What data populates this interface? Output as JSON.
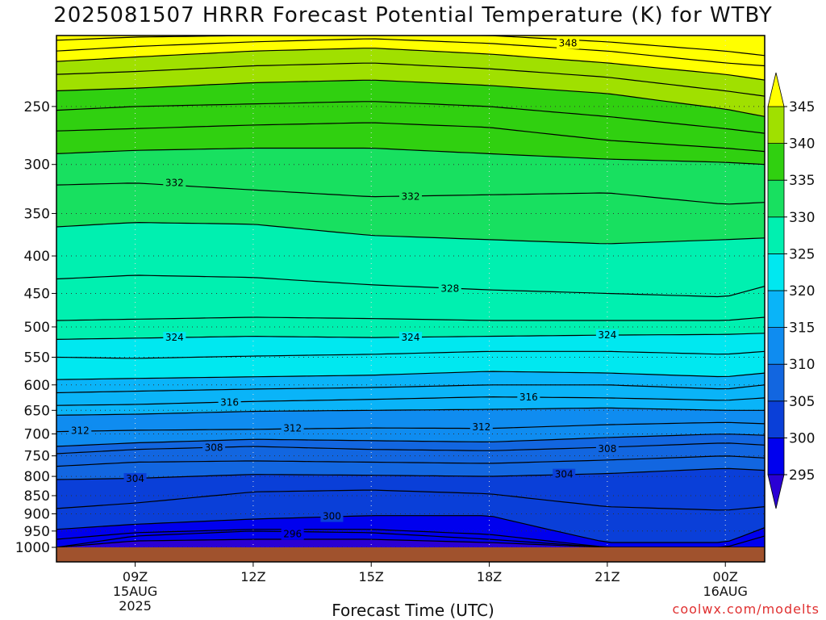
{
  "chart_data": {
    "type": "heatmap",
    "title": "2025081507 HRRR Forecast Potential Temperature (K) for WTBY",
    "xlabel": "Forecast Time (UTC)",
    "ylabel": "",
    "y_axis": {
      "scale": "log",
      "inverted": true,
      "range": [
        200,
        1000
      ],
      "ticks": [
        250,
        300,
        350,
        400,
        450,
        500,
        550,
        600,
        650,
        700,
        750,
        800,
        850,
        900,
        950,
        1000
      ]
    },
    "x_axis": {
      "range_hours_utc": [
        7,
        25
      ],
      "ticks": [
        {
          "x": 9,
          "label": "09Z",
          "sub": [
            "15AUG",
            "2025"
          ]
        },
        {
          "x": 12,
          "label": "12Z",
          "sub": []
        },
        {
          "x": 15,
          "label": "15Z",
          "sub": []
        },
        {
          "x": 18,
          "label": "18Z",
          "sub": []
        },
        {
          "x": 21,
          "label": "21Z",
          "sub": []
        },
        {
          "x": 24,
          "label": "00Z",
          "sub": [
            "16AUG"
          ]
        }
      ]
    },
    "grid": true,
    "colorbar": {
      "levels": [
        295,
        300,
        305,
        310,
        315,
        320,
        325,
        330,
        335,
        340,
        345
      ],
      "labels": [
        "295",
        "300",
        "305",
        "310",
        "315",
        "320",
        "325",
        "330",
        "335",
        "340",
        "345"
      ],
      "colors": [
        "#2a00d4",
        "#0000ee",
        "#0a3fd8",
        "#1266e0",
        "#0f8cf0",
        "#0ab4f8",
        "#00e8f0",
        "#00f0b0",
        "#18e060",
        "#30d010",
        "#a0e000",
        "#ffff00"
      ],
      "extend": "both"
    },
    "times": [
      7,
      9,
      12,
      15,
      18,
      21,
      24,
      25
    ],
    "isotherm_profiles": [
      {
        "theta": 294,
        "p": [
          1000,
          980,
          975,
          975,
          985,
          1000,
          1000,
          1000
        ]
      },
      {
        "theta": 296,
        "p": [
          1000,
          965,
          950,
          955,
          975,
          1000,
          1000,
          1000
        ]
      },
      {
        "theta": 298,
        "p": [
          975,
          955,
          945,
          945,
          960,
          1000,
          1000,
          965
        ]
      },
      {
        "theta": 300,
        "p": [
          945,
          930,
          915,
          905,
          905,
          985,
          985,
          940
        ]
      },
      {
        "theta": 302,
        "p": [
          885,
          870,
          840,
          835,
          845,
          880,
          890,
          880
        ]
      },
      {
        "theta": 304,
        "p": [
          808,
          805,
          795,
          797,
          800,
          793,
          780,
          785
        ]
      },
      {
        "theta": 306,
        "p": [
          775,
          765,
          762,
          765,
          768,
          760,
          750,
          755
        ]
      },
      {
        "theta": 308,
        "p": [
          745,
          735,
          728,
          735,
          738,
          730,
          720,
          725
        ]
      },
      {
        "theta": 310,
        "p": [
          728,
          720,
          712,
          715,
          718,
          708,
          700,
          703
        ]
      },
      {
        "theta": 312,
        "p": [
          695,
          692,
          690,
          687,
          688,
          680,
          675,
          678
        ]
      },
      {
        "theta": 314,
        "p": [
          660,
          658,
          652,
          650,
          648,
          645,
          650,
          650
        ]
      },
      {
        "theta": 316,
        "p": [
          640,
          638,
          632,
          628,
          623,
          625,
          630,
          625
        ]
      },
      {
        "theta": 318,
        "p": [
          615,
          612,
          608,
          605,
          600,
          600,
          608,
          600
        ]
      },
      {
        "theta": 320,
        "p": [
          590,
          588,
          585,
          582,
          575,
          578,
          585,
          578
        ]
      },
      {
        "theta": 322,
        "p": [
          550,
          552,
          548,
          545,
          540,
          540,
          545,
          540
        ]
      },
      {
        "theta": 324,
        "p": [
          520,
          518,
          515,
          517,
          515,
          513,
          512,
          510
        ]
      },
      {
        "theta": 326,
        "p": [
          490,
          488,
          485,
          487,
          490,
          490,
          490,
          485
        ]
      },
      {
        "theta": 328,
        "p": [
          430,
          425,
          428,
          438,
          445,
          450,
          455,
          440
        ]
      },
      {
        "theta": 330,
        "p": [
          365,
          360,
          362,
          375,
          380,
          385,
          380,
          378
        ]
      },
      {
        "theta": 332,
        "p": [
          320,
          318,
          325,
          332,
          330,
          328,
          340,
          338
        ]
      },
      {
        "theta": 334,
        "p": [
          290,
          287,
          285,
          285,
          290,
          295,
          298,
          300
        ]
      },
      {
        "theta": 336,
        "p": [
          270,
          268,
          265,
          263,
          267,
          278,
          285,
          288
        ]
      },
      {
        "theta": 338,
        "p": [
          253,
          250,
          248,
          246,
          250,
          258,
          268,
          272
        ]
      },
      {
        "theta": 340,
        "p": [
          238,
          236,
          232,
          230,
          234,
          240,
          252,
          258
        ]
      },
      {
        "theta": 342,
        "p": [
          226,
          224,
          220,
          218,
          222,
          228,
          238,
          242
        ]
      },
      {
        "theta": 344,
        "p": [
          217,
          214,
          210,
          208,
          212,
          218,
          226,
          230
        ]
      },
      {
        "theta": 346,
        "p": [
          210,
          207,
          204,
          202,
          205,
          210,
          218,
          220
        ]
      },
      {
        "theta": 348,
        "p": [
          203,
          201,
          200,
          200,
          200,
          204,
          210,
          213
        ]
      }
    ],
    "contour_labels": [
      {
        "text": "348",
        "x": 20.0,
        "p": 205
      },
      {
        "text": "332",
        "x": 10.0,
        "p": 318
      },
      {
        "text": "332",
        "x": 16.0,
        "p": 332
      },
      {
        "text": "328",
        "x": 17.0,
        "p": 443
      },
      {
        "text": "324",
        "x": 10.0,
        "p": 517
      },
      {
        "text": "324",
        "x": 16.0,
        "p": 517
      },
      {
        "text": "324",
        "x": 21.0,
        "p": 513
      },
      {
        "text": "316",
        "x": 11.4,
        "p": 634
      },
      {
        "text": "316",
        "x": 19.0,
        "p": 624
      },
      {
        "text": "312",
        "x": 7.6,
        "p": 693
      },
      {
        "text": "312",
        "x": 13.0,
        "p": 688
      },
      {
        "text": "312",
        "x": 17.8,
        "p": 685
      },
      {
        "text": "308",
        "x": 11.0,
        "p": 731
      },
      {
        "text": "308",
        "x": 21.0,
        "p": 734
      },
      {
        "text": "304",
        "x": 9.0,
        "p": 806
      },
      {
        "text": "304",
        "x": 19.9,
        "p": 795
      },
      {
        "text": "300",
        "x": 14.0,
        "p": 907
      },
      {
        "text": "296",
        "x": 13.0,
        "p": 959
      }
    ]
  },
  "xlabel_text": "Forecast Time (UTC)",
  "credit": "coolwx.com/modelts"
}
